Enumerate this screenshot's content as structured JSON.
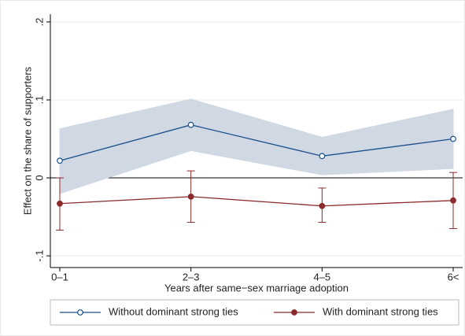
{
  "chart_data": {
    "type": "line",
    "y_label": "Effect on the share of supporters",
    "x_label": "Years after same−sex marriage adoption",
    "categories": [
      "0–1",
      "2–3",
      "4–5",
      "6<"
    ],
    "ylim": [
      -0.115,
      0.21
    ],
    "yticks": [
      {
        "value": -0.1,
        "label": "-.1"
      },
      0,
      {
        "value": 0.1,
        "label": ".1"
      },
      {
        "value": 0.2,
        "label": ".2"
      }
    ],
    "legend": "bottom",
    "series": [
      {
        "name": "Without dominant strong ties",
        "color": "#1a4f8b",
        "band_color": "#cfd8e3",
        "marker": "hollow",
        "interval": "band",
        "values": [
          0.022,
          0.068,
          0.028,
          0.05
        ],
        "lower": [
          -0.02,
          0.035,
          0.004,
          0.012
        ],
        "upper": [
          0.063,
          0.101,
          0.052,
          0.088
        ]
      },
      {
        "name": "With dominant strong ties",
        "color": "#8b2a2a",
        "marker": "filled",
        "interval": "bars",
        "values": [
          -0.033,
          -0.024,
          -0.036,
          -0.029
        ],
        "lower": [
          -0.067,
          -0.057,
          -0.057,
          -0.065
        ],
        "upper": [
          0.0,
          0.009,
          -0.013,
          0.007
        ]
      }
    ]
  }
}
